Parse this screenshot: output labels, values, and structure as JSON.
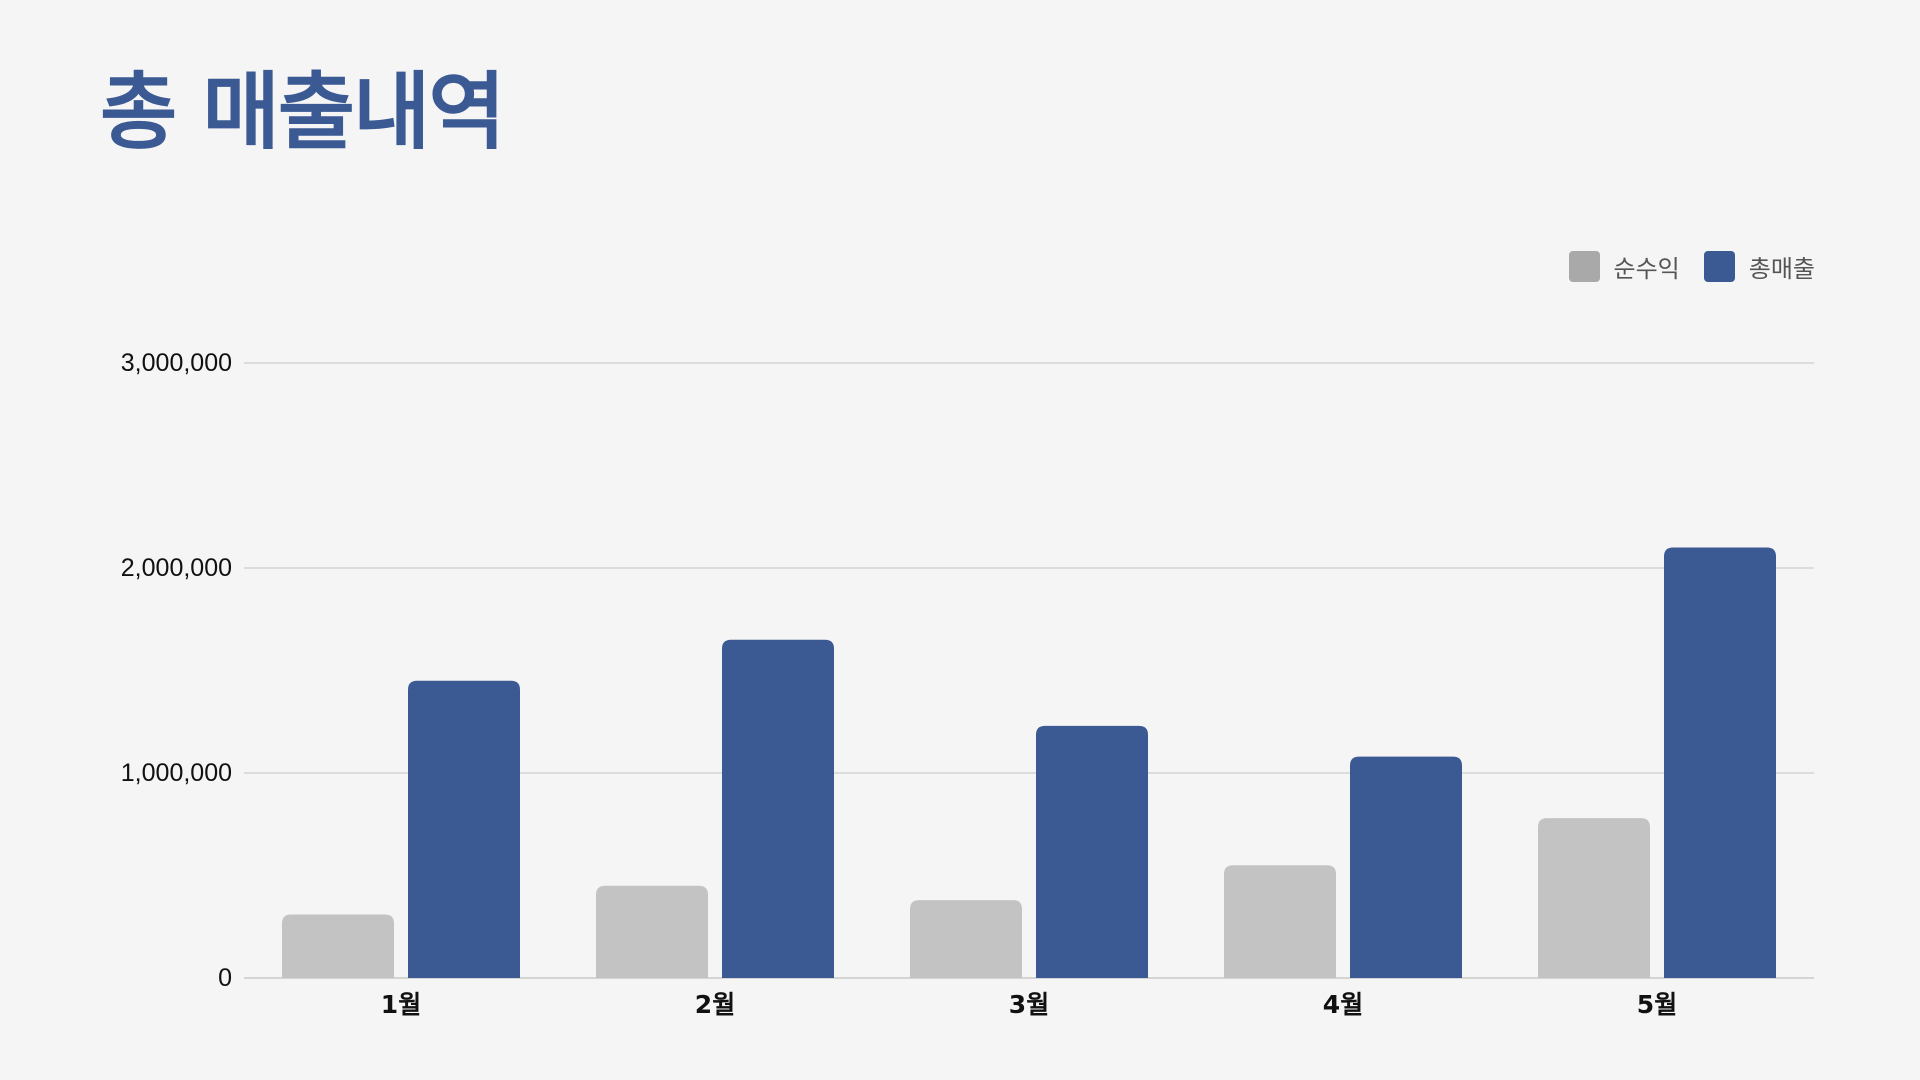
{
  "title": "총 매출내역",
  "legend": [
    {
      "label": "순수익",
      "color": "#c3c3c3",
      "swatch_color": "#a9a9a9"
    },
    {
      "label": "총매출",
      "color": "#3b5a93",
      "swatch_color": "#3b5a93"
    }
  ],
  "chart_data": {
    "type": "bar",
    "title": "총 매출내역",
    "categories": [
      "1월",
      "2월",
      "3월",
      "4월",
      "5월"
    ],
    "series": [
      {
        "name": "순수익",
        "values": [
          310000,
          450000,
          380000,
          550000,
          780000
        ]
      },
      {
        "name": "총매출",
        "values": [
          1450000,
          1650000,
          1230000,
          1080000,
          2100000
        ]
      }
    ],
    "y_ticks": [
      0,
      1000000,
      2000000,
      3000000
    ],
    "y_tick_labels": [
      "0",
      "1,000,000",
      "2,000,000",
      "3,000,000"
    ],
    "ylim": [
      0,
      3000000
    ],
    "xlabel": "",
    "ylabel": "",
    "grid": true,
    "legend_position": "top-right"
  }
}
